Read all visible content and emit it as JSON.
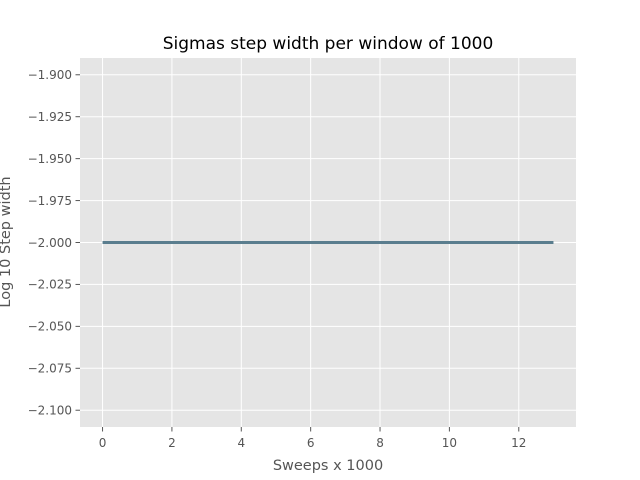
{
  "chart_data": {
    "type": "line",
    "title": "Sigmas step width per window of 1000",
    "xlabel": "Sweeps x 1000",
    "ylabel": "Log 10 Step width",
    "xlim": [
      -0.65,
      13.65
    ],
    "ylim": [
      -2.11,
      -1.89
    ],
    "x_ticks": [
      0,
      2,
      4,
      6,
      8,
      10,
      12
    ],
    "x_tick_labels": [
      "0",
      "2",
      "4",
      "6",
      "8",
      "10",
      "12"
    ],
    "y_ticks": [
      -1.9,
      -1.925,
      -1.95,
      -1.975,
      -2.0,
      -2.025,
      -2.05,
      -2.075,
      -2.1
    ],
    "y_tick_labels": [
      "−1.900",
      "−1.925",
      "−1.950",
      "−1.975",
      "−2.000",
      "−2.025",
      "−2.050",
      "−2.075",
      "−2.100"
    ],
    "grid": true,
    "background": "#e5e5e5",
    "grid_color": "#ffffff",
    "series": [
      {
        "color": "#5a7d8e",
        "x": [
          0,
          1,
          2,
          3,
          4,
          5,
          6,
          7,
          8,
          9,
          10,
          11,
          12,
          13
        ],
        "y": [
          -2.0,
          -2.0,
          -2.0,
          -2.0,
          -2.0,
          -2.0,
          -2.0,
          -2.0,
          -2.0,
          -2.0,
          -2.0,
          -2.0,
          -2.0,
          -2.0
        ]
      }
    ]
  }
}
